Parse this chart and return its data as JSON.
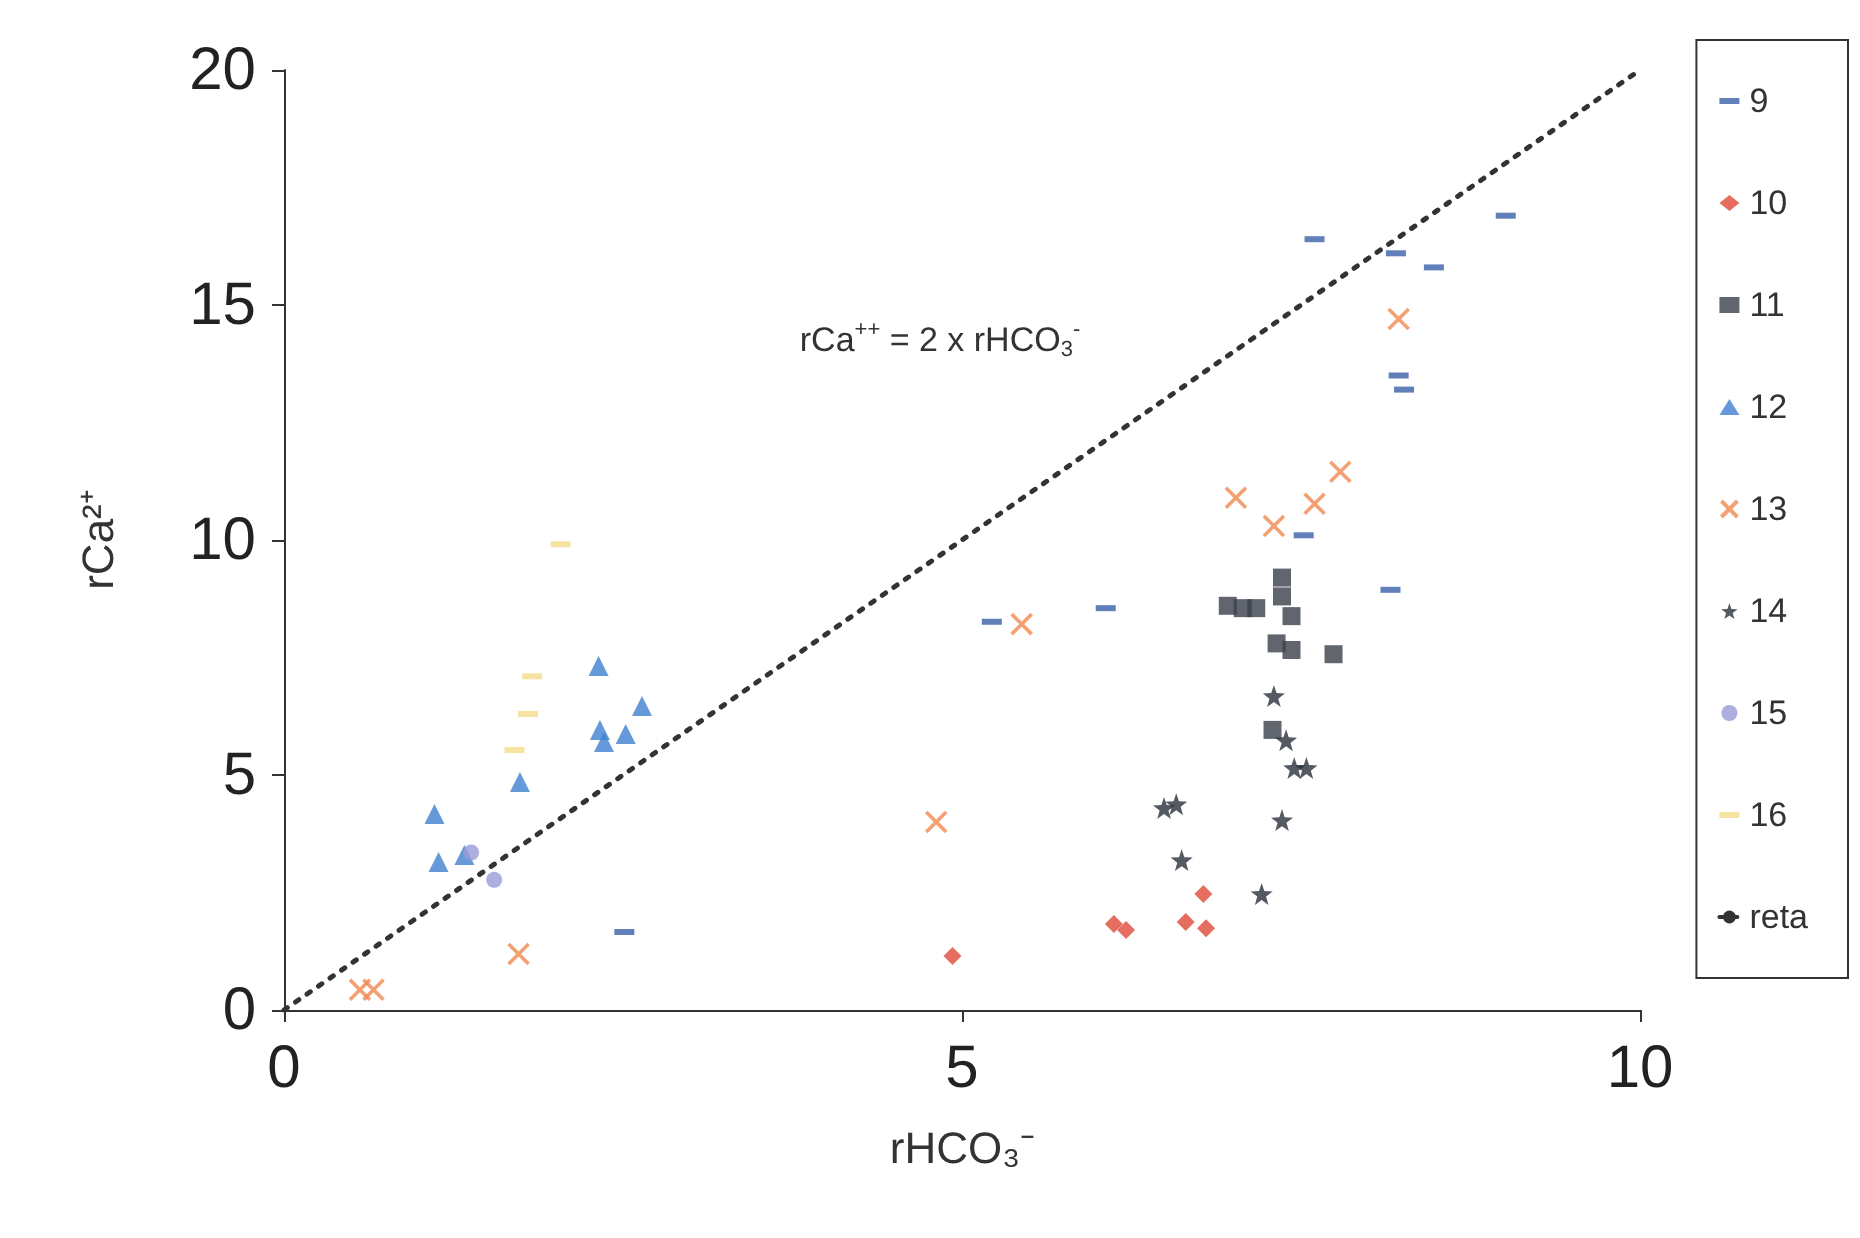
{
  "chart_data": {
    "type": "scatter",
    "xlabel": "rHCO₃⁻",
    "ylabel": "rCa²⁺",
    "xlim": [
      0,
      10
    ],
    "xticks": [
      0,
      5,
      10
    ],
    "ylim": [
      0,
      20
    ],
    "yticks": [
      0,
      5,
      10,
      15,
      20
    ],
    "grid": false,
    "legend": "right",
    "annotations": [
      "rCa$^{++}$ = 2 x rHCO$_{3}$$^{-}$"
    ],
    "series": [
      {
        "name": "9",
        "color": "#3a5fa8",
        "x": [
          2.51,
          5.22,
          6.06,
          7.52,
          7.6,
          8.16,
          8.2,
          8.22,
          8.26,
          8.48,
          9.01
        ],
        "values": [
          1.66,
          8.26,
          8.55,
          10.1,
          16.4,
          8.94,
          16.1,
          13.5,
          13.2,
          15.8,
          16.9
        ]
      },
      {
        "name": "10",
        "color": "#e04a3a",
        "marker": "diamond",
        "x": [
          4.93,
          6.12,
          6.21,
          6.65,
          6.78,
          6.8
        ],
        "values": [
          1.15,
          1.83,
          1.7,
          1.87,
          2.47,
          1.74
        ]
      },
      {
        "name": "11",
        "color": "#3a3f48",
        "marker": "square",
        "x": [
          6.96,
          7.07,
          7.17,
          7.36,
          7.36,
          7.43,
          7.32,
          7.43,
          7.74,
          7.29
        ],
        "values": [
          8.6,
          8.55,
          8.55,
          9.2,
          8.8,
          8.38,
          7.8,
          7.66,
          7.57,
          5.96
        ]
      },
      {
        "name": "12",
        "color": "#3f7fd0",
        "marker": "triangle",
        "x": [
          1.11,
          1.14,
          1.33,
          1.74,
          2.32,
          2.33,
          2.36,
          2.52,
          2.64
        ],
        "values": [
          4.17,
          3.15,
          3.3,
          4.85,
          7.32,
          5.96,
          5.7,
          5.87,
          6.47
        ]
      },
      {
        "name": "13",
        "color": "#f08a50",
        "marker": "cross",
        "x": [
          0.56,
          0.66,
          1.73,
          4.81,
          5.44,
          7.02,
          7.3,
          7.6,
          7.79,
          8.22
        ],
        "values": [
          0.43,
          0.43,
          1.19,
          4.0,
          8.21,
          10.9,
          10.3,
          10.77,
          11.45,
          14.7
        ]
      },
      {
        "name": "14",
        "color": "#2a2f3a",
        "marker": "star",
        "x": [
          6.49,
          6.58,
          6.62,
          7.21,
          7.3,
          7.36,
          7.39,
          7.45,
          7.54
        ],
        "values": [
          4.3,
          4.38,
          3.19,
          2.47,
          6.68,
          4.04,
          5.74,
          5.15,
          5.15
        ]
      },
      {
        "name": "15",
        "color": "#9a9ad8",
        "marker": "circle",
        "x": [
          1.38,
          1.55
        ],
        "values": [
          3.35,
          2.77
        ]
      },
      {
        "name": "16",
        "color": "#f2dc8a",
        "x": [
          1.7,
          1.8,
          1.83,
          2.04
        ],
        "values": [
          5.53,
          6.3,
          7.1,
          9.91
        ]
      },
      {
        "name": "reta",
        "type": "line",
        "color": "#333333",
        "line_style": "dotted",
        "marker": "none",
        "x": [
          0,
          10
        ],
        "values": [
          0,
          20
        ]
      }
    ]
  }
}
